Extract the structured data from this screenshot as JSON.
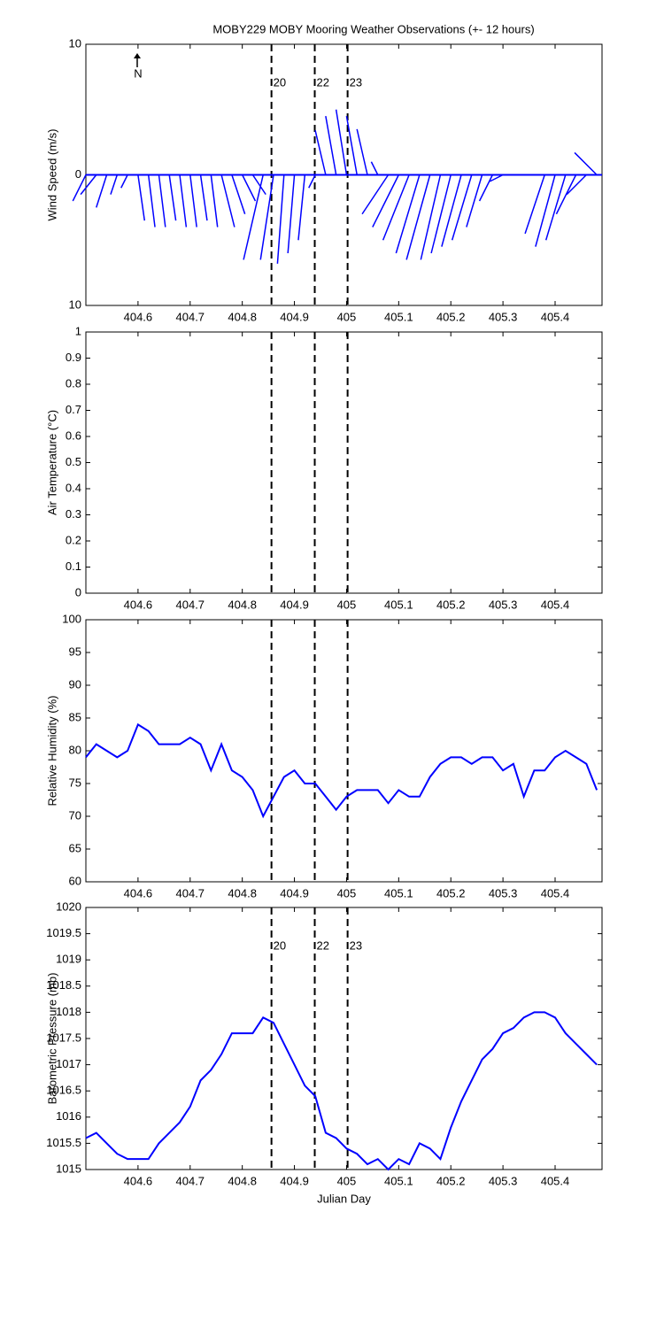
{
  "chart_data": [
    {
      "type": "stick",
      "title": "MOBY229 MOBY Mooring Weather Observations (+- 12 hours)",
      "ylabel": "Wind Speed (m/s)",
      "north_label": "N",
      "color": "#0000ff",
      "xlim": [
        404.5,
        405.49
      ],
      "xticks": [
        404.6,
        404.7,
        404.8,
        404.9,
        405,
        405.1,
        405.2,
        405.3,
        405.4
      ],
      "ylim": [
        -10,
        10
      ],
      "yticks": [
        {
          "value": -10,
          "label": "10"
        },
        0,
        10
      ],
      "vlines": [
        404.856,
        404.939,
        405.002
      ],
      "vline_labels": [
        "20",
        "22",
        "23"
      ],
      "x": [
        404.5,
        404.52,
        404.54,
        404.56,
        404.58,
        404.6,
        404.62,
        404.64,
        404.66,
        404.68,
        404.7,
        404.72,
        404.74,
        404.76,
        404.78,
        404.8,
        404.82,
        404.84,
        404.86,
        404.88,
        404.9,
        404.92,
        404.94,
        404.96,
        404.98,
        405,
        405.02,
        405.04,
        405.06,
        405.08,
        405.1,
        405.12,
        405.14,
        405.16,
        405.18,
        405.2,
        405.22,
        405.24,
        405.26,
        405.28,
        405.3,
        405.32,
        405.34,
        405.36,
        405.38,
        405.4,
        405.42,
        405.44,
        405.46,
        405.48
      ],
      "values": [
        -2,
        -1.5,
        -2.5,
        -1.5,
        -1,
        -3.5,
        -4,
        -4,
        -3.5,
        -4,
        -4,
        -3.5,
        -4,
        -4,
        -3,
        -2,
        -1.5,
        -6.5,
        -6.5,
        -6.8,
        -6,
        -5,
        -1,
        3.4,
        4.5,
        5,
        4.5,
        3.5,
        1,
        -3,
        -4,
        -5,
        -6,
        -6.5,
        -6.5,
        -6,
        -5.5,
        -5,
        -4,
        -2,
        -0.5,
        0,
        0,
        0,
        -4.5,
        -5.5,
        -5,
        -3,
        -1.5,
        1.7
      ],
      "u": [
        -1,
        -1.2,
        -0.8,
        -0.5,
        -0.5,
        0.5,
        0.5,
        0.5,
        0.5,
        0.5,
        0.5,
        0.5,
        0.5,
        1,
        1,
        1,
        1,
        -1.5,
        -1,
        -0.5,
        -0.5,
        -0.5,
        -0.5,
        -0.8,
        -0.8,
        -0.8,
        -0.8,
        -0.8,
        -0.5,
        -2,
        -2,
        -2,
        -1.8,
        -1.8,
        -1.5,
        -1.5,
        -1.5,
        -1.5,
        -1.2,
        -1,
        -1,
        2,
        0,
        0,
        -1.5,
        -1.5,
        -1.5,
        -1.5,
        -1.5,
        -1.7
      ]
    },
    {
      "type": "line",
      "ylabel": "Air Temperature (°C)",
      "xlim": [
        404.5,
        405.49
      ],
      "xticks": [
        404.6,
        404.7,
        404.8,
        404.9,
        405,
        405.1,
        405.2,
        405.3,
        405.4
      ],
      "ylim": [
        0,
        1
      ],
      "yticks": [
        0,
        0.1,
        0.2,
        0.3,
        0.4,
        0.5,
        0.6,
        0.7,
        0.8,
        0.9,
        1
      ],
      "vlines": [
        404.856,
        404.939,
        405.002
      ]
    },
    {
      "type": "line",
      "ylabel": "Relative Humidity (%)",
      "color": "#0000ff",
      "xlim": [
        404.5,
        405.49
      ],
      "xticks": [
        404.6,
        404.7,
        404.8,
        404.9,
        405,
        405.1,
        405.2,
        405.3,
        405.4
      ],
      "ylim": [
        60,
        100
      ],
      "yticks": [
        60,
        65,
        70,
        75,
        80,
        85,
        90,
        95,
        100
      ],
      "vlines": [
        404.856,
        404.939,
        405.002
      ],
      "x": [
        404.5,
        404.52,
        404.54,
        404.56,
        404.58,
        404.6,
        404.62,
        404.64,
        404.66,
        404.68,
        404.7,
        404.72,
        404.74,
        404.76,
        404.78,
        404.8,
        404.82,
        404.84,
        404.86,
        404.88,
        404.9,
        404.92,
        404.94,
        404.96,
        404.98,
        405,
        405.02,
        405.04,
        405.06,
        405.08,
        405.1,
        405.12,
        405.14,
        405.16,
        405.18,
        405.2,
        405.22,
        405.24,
        405.26,
        405.28,
        405.3,
        405.32,
        405.34,
        405.36,
        405.38,
        405.4,
        405.42,
        405.44,
        405.46,
        405.48
      ],
      "values": [
        79,
        81,
        80,
        79,
        80,
        84,
        83,
        81,
        81,
        81,
        82,
        81,
        77,
        81,
        77,
        76,
        74,
        70,
        73,
        76,
        77,
        75,
        75,
        73,
        71,
        73,
        74,
        74,
        74,
        72,
        74,
        73,
        73,
        76,
        78,
        79,
        79,
        78,
        79,
        79,
        77,
        78,
        73,
        77,
        77,
        79,
        80,
        79,
        78,
        74
      ]
    },
    {
      "type": "line",
      "ylabel": "Barometric Pressure (mb)",
      "xlabel": "Julian Day",
      "color": "#0000ff",
      "xlim": [
        404.5,
        405.49
      ],
      "xticks": [
        404.6,
        404.7,
        404.8,
        404.9,
        405,
        405.1,
        405.2,
        405.3,
        405.4
      ],
      "ylim": [
        1015,
        1020
      ],
      "yticks": [
        1015,
        1015.5,
        1016,
        1016.5,
        1017,
        1017.5,
        1018,
        1018.5,
        1019,
        1019.5,
        1020
      ],
      "vlines": [
        404.856,
        404.939,
        405.002
      ],
      "vline_labels": [
        "20",
        "22",
        "23"
      ],
      "x": [
        404.5,
        404.52,
        404.54,
        404.56,
        404.58,
        404.6,
        404.62,
        404.64,
        404.66,
        404.68,
        404.7,
        404.72,
        404.74,
        404.76,
        404.78,
        404.8,
        404.82,
        404.84,
        404.86,
        404.88,
        404.9,
        404.92,
        404.94,
        404.96,
        404.98,
        405,
        405.02,
        405.04,
        405.06,
        405.08,
        405.1,
        405.12,
        405.14,
        405.16,
        405.18,
        405.2,
        405.22,
        405.24,
        405.26,
        405.28,
        405.3,
        405.32,
        405.34,
        405.36,
        405.38,
        405.4,
        405.42,
        405.44,
        405.46,
        405.48
      ],
      "values": [
        1015.6,
        1015.7,
        1015.5,
        1015.3,
        1015.2,
        1015.2,
        1015.2,
        1015.5,
        1015.7,
        1015.9,
        1016.2,
        1016.7,
        1016.9,
        1017.2,
        1017.6,
        1017.6,
        1017.6,
        1017.9,
        1017.8,
        1017.4,
        1017,
        1016.6,
        1016.4,
        1015.7,
        1015.6,
        1015.4,
        1015.3,
        1015.1,
        1015.2,
        1015,
        1015.2,
        1015.1,
        1015.5,
        1015.4,
        1015.2,
        1015.8,
        1016.3,
        1016.7,
        1017.1,
        1017.3,
        1017.6,
        1017.7,
        1017.9,
        1018,
        1018,
        1017.9,
        1017.6,
        1017.4,
        1017.2,
        1017
      ]
    }
  ]
}
